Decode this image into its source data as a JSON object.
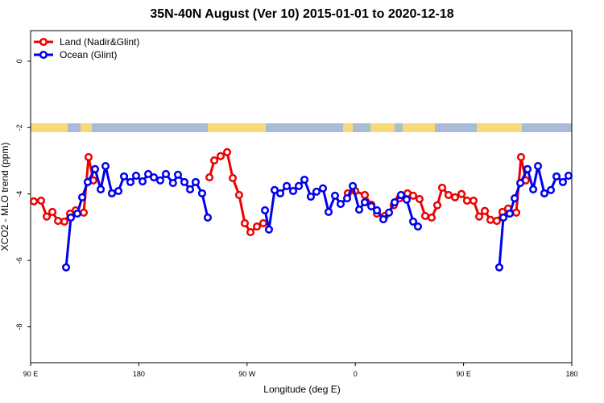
{
  "chart_data": {
    "type": "line",
    "title": "35N-40N August (Ver 10)   2015-01-01 to 2020-12-18",
    "x_label": "Longitude (deg E)",
    "y_label": "XCO2 - MLO trend (ppm)",
    "xlim": [
      90,
      540
    ],
    "ylim": [
      -9.08,
      0.92
    ],
    "xticks": [
      {
        "value": 90,
        "label": "90 E"
      },
      {
        "value": 180,
        "label": "180"
      },
      {
        "value": 270,
        "label": "90 W"
      },
      {
        "value": 360,
        "label": "0"
      },
      {
        "value": 450,
        "label": "90 E"
      },
      {
        "value": 540,
        "label": "180"
      }
    ],
    "yticks": [
      0,
      -2,
      -4,
      -6,
      -8
    ],
    "legend": "top-left",
    "series": [
      {
        "name": "Land (Nadir&Glint)",
        "color": "#ee0000",
        "x": [
          92.7,
          98.7,
          103.4,
          108.1,
          112.8,
          118.1,
          122.8,
          127.5,
          134.2,
          138.2,
          142.2,
          null,
          238.7,
          242.7,
          248,
          253.4,
          258.1,
          263.4,
          268.1,
          272.8,
          278.2,
          283.5,
          null,
          353.8,
          359.9,
          367.9,
          373.3,
          378,
          384.6,
          392,
          396.7,
          403.4,
          408.1,
          413.4,
          418.1,
          423.5,
          428.2,
          432.2,
          437.5,
          442.9,
          448.3,
          452.9,
          458.3,
          463,
          467.7,
          472.4,
          477.7,
          482.4,
          487.1,
          493.8,
          497.8,
          501.8
        ],
        "values": [
          -4.22,
          -4.2,
          -4.68,
          -4.54,
          -4.81,
          -4.83,
          -4.59,
          -4.49,
          -4.56,
          -2.89,
          -3.59,
          null,
          -3.5,
          -2.99,
          -2.86,
          -2.74,
          -3.52,
          -4.03,
          -4.88,
          -5.15,
          -4.98,
          -4.88,
          null,
          -3.98,
          -3.91,
          -4.03,
          -4.32,
          -4.59,
          -4.66,
          -4.34,
          -4.13,
          -3.98,
          -4.05,
          -4.15,
          -4.66,
          -4.71,
          -4.34,
          -3.81,
          -4.03,
          -4.1,
          -4.0,
          -4.2,
          -4.2,
          -4.68,
          -4.51,
          -4.78,
          -4.81,
          -4.54,
          -4.44,
          -4.56,
          -2.89,
          -3.59
        ]
      },
      {
        "name": "Ocean (Glint)",
        "color": "#0000ee",
        "x": [
          119.5,
          123.5,
          128.8,
          132.9,
          137.5,
          143.6,
          148.3,
          152.3,
          157.6,
          163,
          167.7,
          173,
          177.7,
          183.1,
          187.8,
          192.5,
          197.8,
          202.5,
          208.4,
          212.5,
          217.9,
          222.6,
          227.3,
          232.6,
          237.3,
          null,
          284.9,
          288.2,
          292.9,
          297.6,
          303,
          308.3,
          313,
          317.7,
          323,
          327.7,
          333.1,
          337.8,
          343.1,
          347.8,
          353.2,
          357.9,
          363.2,
          367.9,
          373.3,
          378,
          383.3,
          388,
          392.7,
          398,
          402.7,
          408.1,
          412.1,
          null,
          479.7,
          483.1,
          488.4,
          492.5,
          497.2,
          503.2,
          507.9,
          511.9,
          517.2,
          522.6,
          527.3,
          532.6,
          537.3
        ],
        "values": [
          -6.21,
          -4.71,
          -4.59,
          -4.1,
          -3.64,
          -3.25,
          -3.86,
          -3.16,
          -3.98,
          -3.91,
          -3.47,
          -3.64,
          -3.45,
          -3.62,
          -3.4,
          -3.5,
          -3.59,
          -3.4,
          -3.67,
          -3.42,
          -3.64,
          -3.86,
          -3.64,
          -3.98,
          -4.71,
          null,
          -4.49,
          -5.07,
          -3.88,
          -3.98,
          -3.76,
          -3.91,
          -3.76,
          -3.57,
          -4.08,
          -3.93,
          -3.83,
          -4.54,
          -4.05,
          -4.3,
          -4.13,
          -3.76,
          -4.47,
          -4.25,
          -4.37,
          -4.49,
          -4.76,
          -4.56,
          -4.25,
          -4.03,
          -4.17,
          -4.83,
          -4.98,
          null,
          -6.21,
          -4.71,
          -4.59,
          -4.13,
          -3.67,
          -3.25,
          -3.86,
          -3.16,
          -3.98,
          -3.88,
          -3.47,
          -3.64,
          -3.45
        ]
      }
    ]
  }
}
